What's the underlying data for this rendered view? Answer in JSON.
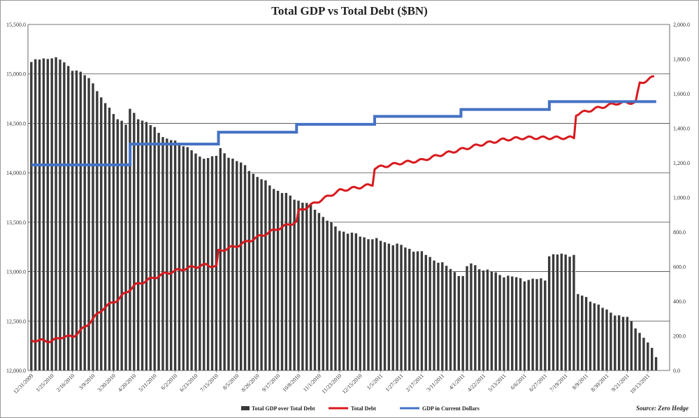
{
  "chart_data": {
    "type": "bar+line",
    "title": "Total GDP vs Total Debt ($BN)",
    "source": "Source: Zero Hedge",
    "left_axis": {
      "ticks": [
        "12,000.0",
        "12,500.0",
        "13,000.0",
        "13,500.0",
        "14,000.0",
        "14,500.0",
        "15,000.0",
        "15,500.0"
      ],
      "ylim": [
        12000,
        15500
      ]
    },
    "right_axis": {
      "ticks": [
        "0.0",
        "200.0",
        "400.0",
        "600.0",
        "800.0",
        "1,000.0",
        "1,200.0",
        "1,400.0",
        "1,600.0",
        "1,800.0",
        "2,000.0"
      ],
      "ylim": [
        0,
        2000
      ]
    },
    "x_tick_labels": [
      "12/31/2009",
      "1/25/2010",
      "2/16/2010",
      "3/9/2010",
      "3/30/2010",
      "4/20/2010",
      "5/11/2010",
      "6/2/2010",
      "6/23/2010",
      "7/15/2010",
      "8/5/2010",
      "8/26/2010",
      "9/17/2010",
      "10/8/2010",
      "11/1/2010",
      "11/23/2010",
      "12/15/2010",
      "1/5/2011",
      "1/27/2011",
      "2/17/2011",
      "3/11/2011",
      "4/1/2011",
      "4/22/2011",
      "5/13/2011",
      "6/6/2011",
      "6/27/2011",
      "7/19/2011",
      "8/9/2011",
      "8/30/2011",
      "9/21/2011",
      "10/13/2011"
    ],
    "series": [
      {
        "name": "Total GDP over Total Debt",
        "kind": "bar",
        "axis": "left",
        "color": "#3a3a3a",
        "anchors": [
          [
            0,
            15120
          ],
          [
            0.5,
            15150
          ],
          [
            1,
            15170
          ],
          [
            1.5,
            15130
          ],
          [
            2,
            15050
          ],
          [
            2.5,
            15000
          ],
          [
            3,
            14920
          ],
          [
            3.4,
            14750
          ],
          [
            4,
            14600
          ],
          [
            4.6,
            14480
          ],
          [
            4.8,
            14640
          ],
          [
            5.2,
            14560
          ],
          [
            6,
            14450
          ],
          [
            6.6,
            14340
          ],
          [
            7.5,
            14280
          ],
          [
            8.2,
            14150
          ],
          [
            9,
            14170
          ],
          [
            9.1,
            14250
          ],
          [
            9.5,
            14180
          ],
          [
            10,
            14120
          ],
          [
            10.5,
            14050
          ],
          [
            11,
            13960
          ],
          [
            12,
            13820
          ],
          [
            12.9,
            13730
          ],
          [
            13.5,
            13680
          ],
          [
            14,
            13600
          ],
          [
            14.5,
            13500
          ],
          [
            15,
            13420
          ],
          [
            16,
            13360
          ],
          [
            17,
            13310
          ],
          [
            18,
            13260
          ],
          [
            19,
            13190
          ],
          [
            20,
            13080
          ],
          [
            20.5,
            13010
          ],
          [
            21,
            12950
          ],
          [
            21.3,
            13090
          ],
          [
            22,
            13020
          ],
          [
            23,
            12960
          ],
          [
            24,
            12920
          ],
          [
            25,
            12920
          ],
          [
            25.2,
            13170
          ],
          [
            26.4,
            13170
          ],
          [
            26.5,
            12780
          ],
          [
            27.5,
            12680
          ],
          [
            28,
            12600
          ],
          [
            29,
            12530
          ],
          [
            29.4,
            12440
          ],
          [
            30,
            12280
          ],
          [
            30.4,
            12140
          ]
        ]
      },
      {
        "name": "Total Debt",
        "kind": "line",
        "axis": "right",
        "color": "#d8191e",
        "anchors": [
          [
            0,
            175
          ],
          [
            1,
            170
          ],
          [
            1.5,
            195
          ],
          [
            2,
            195
          ],
          [
            2.6,
            250
          ],
          [
            3.5,
            360
          ],
          [
            4.2,
            410
          ],
          [
            5,
            490
          ],
          [
            5.6,
            520
          ],
          [
            6.5,
            560
          ],
          [
            7.5,
            590
          ],
          [
            8.5,
            610
          ],
          [
            9,
            600
          ],
          [
            9.1,
            690
          ],
          [
            10,
            720
          ],
          [
            11,
            770
          ],
          [
            12,
            820
          ],
          [
            12.9,
            860
          ],
          [
            13,
            920
          ],
          [
            14,
            980
          ],
          [
            15,
            1040
          ],
          [
            16,
            1060
          ],
          [
            16.6,
            1075
          ],
          [
            16.7,
            1170
          ],
          [
            18,
            1200
          ],
          [
            19,
            1215
          ],
          [
            20,
            1250
          ],
          [
            21,
            1280
          ],
          [
            22,
            1310
          ],
          [
            23,
            1335
          ],
          [
            24,
            1345
          ],
          [
            25,
            1345
          ],
          [
            26,
            1345
          ],
          [
            26.4,
            1345
          ],
          [
            26.5,
            1480
          ],
          [
            27.5,
            1515
          ],
          [
            28.5,
            1545
          ],
          [
            29.4,
            1550
          ],
          [
            29.6,
            1660
          ],
          [
            30,
            1680
          ],
          [
            30.4,
            1705
          ]
        ]
      },
      {
        "name": "GDP in Current Dollars",
        "kind": "step",
        "axis": "left",
        "color": "#4472c4",
        "steps": [
          [
            0,
            14080
          ],
          [
            4.8,
            14290
          ],
          [
            9.1,
            14410
          ],
          [
            12.9,
            14490
          ],
          [
            16.7,
            14570
          ],
          [
            20.9,
            14640
          ],
          [
            25.2,
            14720
          ],
          [
            30.4,
            14720
          ]
        ]
      }
    ]
  }
}
